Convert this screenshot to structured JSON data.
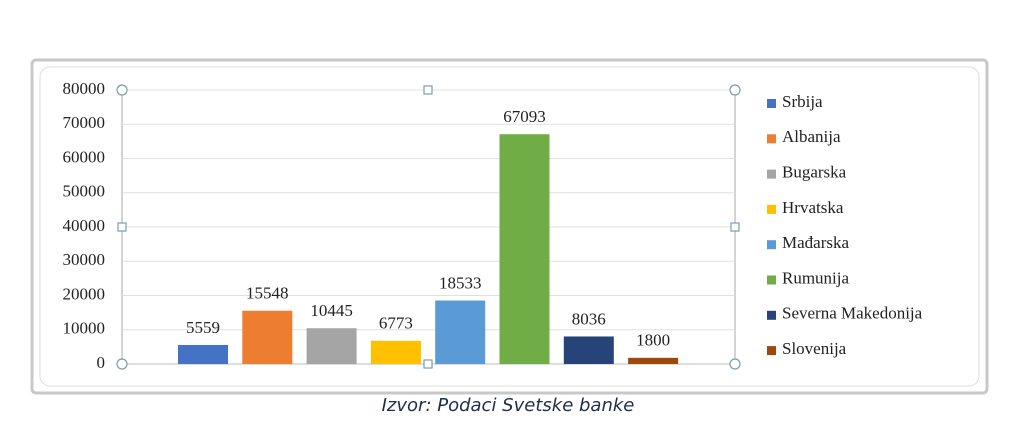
{
  "chart_data": {
    "type": "bar",
    "caption": "Izvor: Podaci Svetske banke",
    "series": [
      {
        "name": "Srbija",
        "color": "#4472c4",
        "values": [
          5559
        ]
      },
      {
        "name": "Albanija",
        "color": "#ed7d31",
        "values": [
          15548
        ]
      },
      {
        "name": "Bugarska",
        "color": "#a5a5a5",
        "values": [
          10445
        ]
      },
      {
        "name": "Hrvatska",
        "color": "#ffc000",
        "values": [
          6773
        ]
      },
      {
        "name": "Mađarska",
        "color": "#5b9bd5",
        "values": [
          18533
        ]
      },
      {
        "name": "Rumunija",
        "color": "#70ad47",
        "values": [
          67093
        ]
      },
      {
        "name": "Severna Makedonija",
        "color": "#264478",
        "values": [
          8036
        ]
      },
      {
        "name": "Slovenija",
        "color": "#9e480e",
        "values": [
          1800
        ]
      }
    ],
    "ylim": [
      0,
      80000
    ],
    "yticks": [
      0,
      10000,
      20000,
      30000,
      40000,
      50000,
      60000,
      70000,
      80000
    ],
    "grid": true,
    "legend": "right"
  }
}
